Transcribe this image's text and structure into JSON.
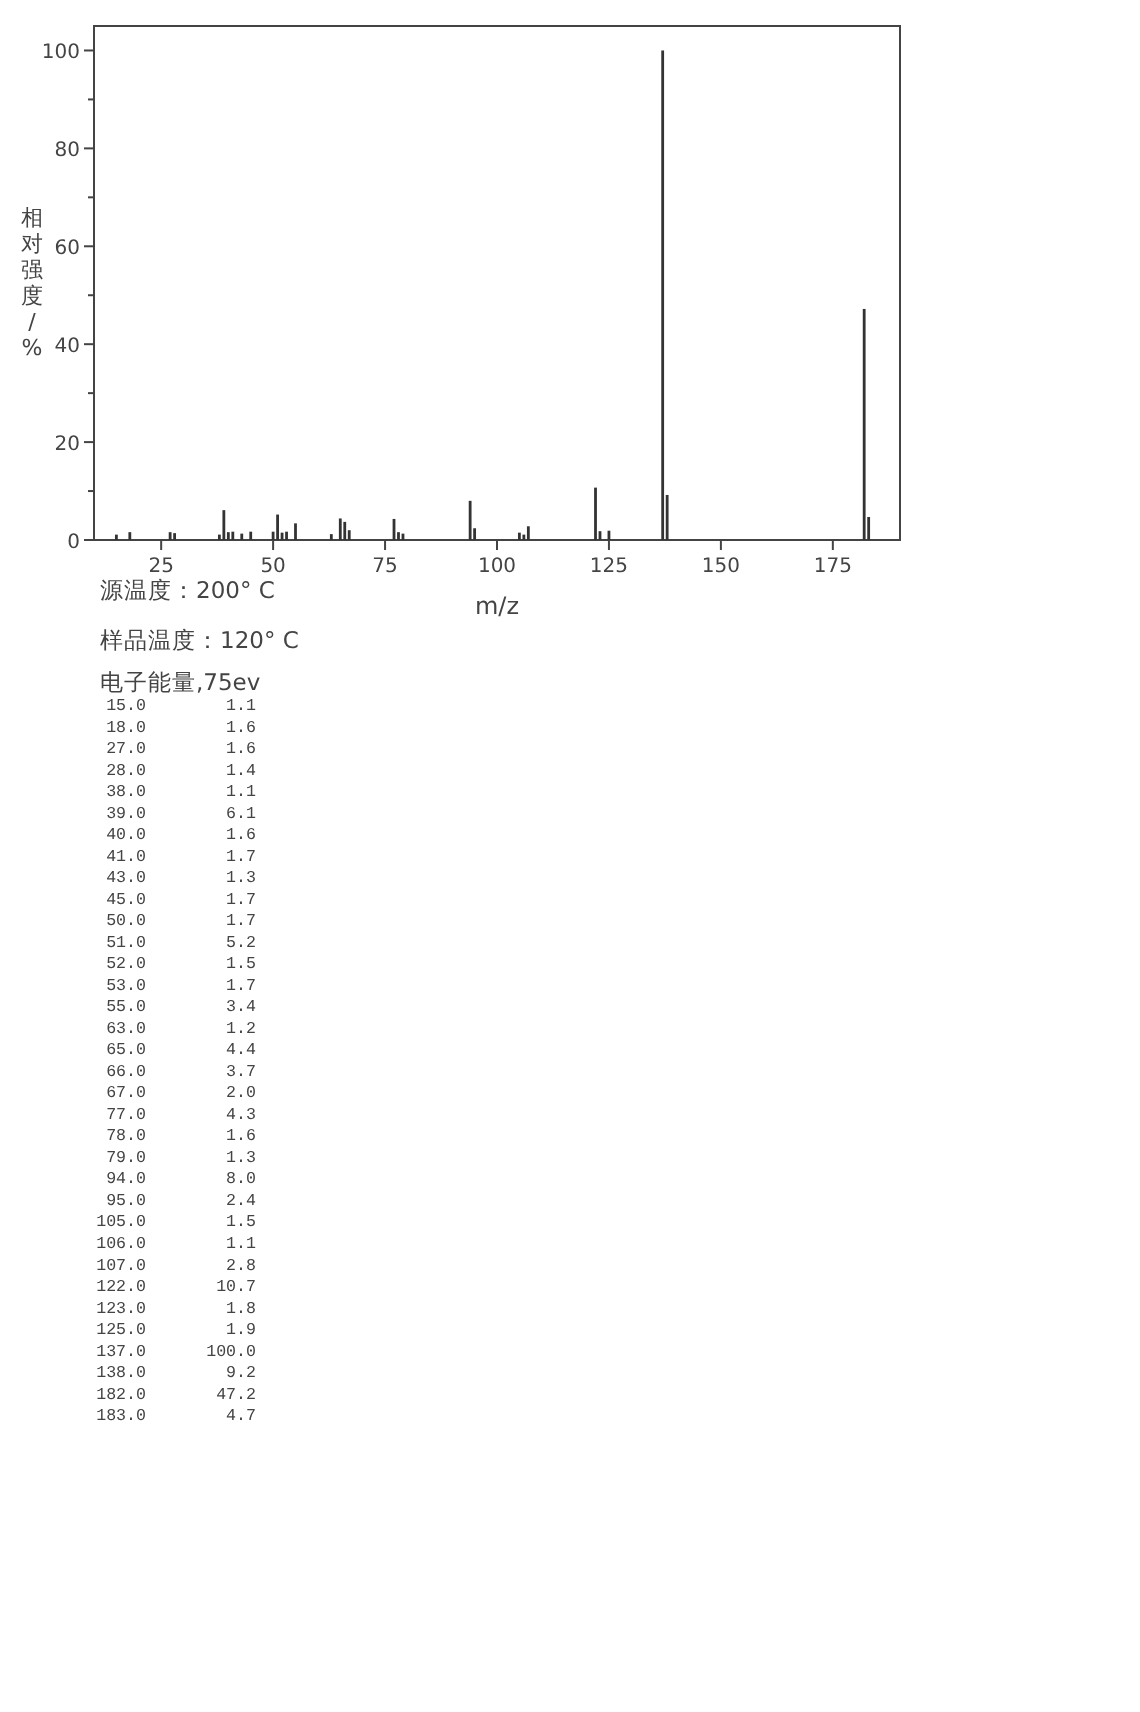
{
  "chart_data": {
    "type": "bar",
    "xlabel": "m/z",
    "ylabel": "相对强度/%",
    "color": "#333333",
    "x": [
      15,
      18,
      27,
      28,
      38,
      39,
      40,
      41,
      43,
      45,
      50,
      51,
      52,
      53,
      55,
      63,
      65,
      66,
      67,
      77,
      78,
      79,
      94,
      95,
      105,
      106,
      107,
      122,
      123,
      125,
      137,
      138,
      182,
      183
    ],
    "values": [
      1.1,
      1.6,
      1.6,
      1.4,
      1.1,
      6.1,
      1.6,
      1.7,
      1.3,
      1.7,
      1.7,
      5.2,
      1.5,
      1.7,
      3.4,
      1.2,
      4.4,
      3.7,
      2.0,
      4.3,
      1.6,
      1.3,
      8.0,
      2.4,
      1.5,
      1.1,
      2.8,
      10.7,
      1.8,
      1.9,
      100.0,
      9.2,
      47.2,
      4.7
    ],
    "xlim": [
      10,
      190
    ],
    "xticks": [
      25,
      50,
      75,
      100,
      125,
      150,
      175
    ],
    "ylim": [
      0,
      105
    ],
    "yticks": [
      0,
      {
        "value": 10,
        "label": null
      },
      20,
      {
        "value": 30,
        "label": null
      },
      40,
      {
        "value": 50,
        "label": null
      },
      60,
      {
        "value": 70,
        "label": null
      },
      80,
      {
        "value": 90,
        "label": null
      },
      100
    ],
    "annotations": [
      "源温度：200° C",
      "样品温度：120° C",
      "电子能量,75ev",
      "15.0 1.1",
      "18.0 1.6",
      "27.0 1.6",
      "28.0 1.4",
      "38.0 1.1",
      "39.0 6.1",
      "40.0 1.6",
      "41.0 1.7",
      "43.0 1.3",
      "45.0 1.7",
      "50.0 1.7",
      "51.0 5.2",
      "52.0 1.5",
      "53.0 1.7",
      "55.0 3.4",
      "63.0 1.2",
      "65.0 4.4",
      "66.0 3.7",
      "67.0 2.0",
      "77.0 4.3",
      "78.0 1.6",
      "79.0 1.3",
      "94.0 8.0",
      "95.0 2.4",
      "105.0 1.5",
      "106.0 1.1",
      "107.0 2.8",
      "122.0 10.7",
      "123.0 1.8",
      "125.0 1.9",
      "137.0 100.0",
      "138.0 9.2",
      "182.0 47.2",
      "183.0 4.7"
    ]
  }
}
